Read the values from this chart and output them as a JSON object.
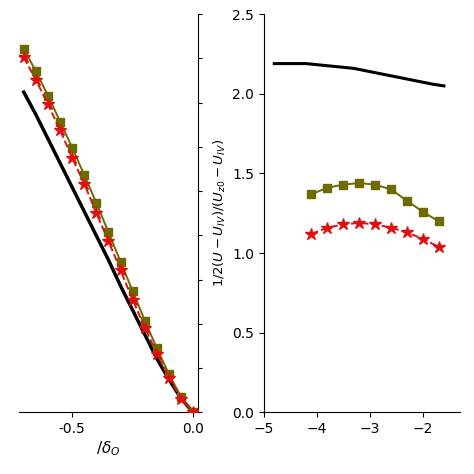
{
  "panel_a": {
    "black_x": [
      -0.7,
      -0.65,
      -0.6,
      -0.55,
      -0.5,
      -0.45,
      -0.4,
      -0.35,
      -0.3,
      -0.25,
      -0.2,
      -0.15,
      -0.1,
      -0.05,
      0.0
    ],
    "black_y": [
      1.85,
      1.72,
      1.58,
      1.44,
      1.3,
      1.16,
      1.02,
      0.88,
      0.73,
      0.59,
      0.45,
      0.31,
      0.19,
      0.08,
      0.0
    ],
    "olive_x": [
      -0.7,
      -0.65,
      -0.6,
      -0.55,
      -0.5,
      -0.45,
      -0.4,
      -0.35,
      -0.3,
      -0.25,
      -0.2,
      -0.15,
      -0.1,
      -0.05,
      0.0
    ],
    "olive_y": [
      2.1,
      1.97,
      1.83,
      1.68,
      1.53,
      1.37,
      1.21,
      1.04,
      0.87,
      0.7,
      0.53,
      0.37,
      0.22,
      0.09,
      0.0
    ],
    "red_x": [
      -0.7,
      -0.65,
      -0.6,
      -0.55,
      -0.5,
      -0.45,
      -0.4,
      -0.35,
      -0.3,
      -0.25,
      -0.2,
      -0.15,
      -0.1,
      -0.05,
      0.0
    ],
    "red_y": [
      2.05,
      1.92,
      1.78,
      1.63,
      1.47,
      1.32,
      1.15,
      0.99,
      0.82,
      0.65,
      0.49,
      0.34,
      0.2,
      0.08,
      0.0
    ],
    "xlim": [
      -0.72,
      0.02
    ],
    "ylim": [
      0.0,
      2.3
    ],
    "xticks": [
      -0.5,
      0.0
    ],
    "xlabel": "$/ \\delta_O$"
  },
  "panel_b": {
    "black_x": [
      -4.8,
      -4.5,
      -4.2,
      -3.9,
      -3.6,
      -3.3,
      -3.0,
      -2.7,
      -2.4,
      -2.1,
      -1.8,
      -1.6
    ],
    "black_y": [
      2.19,
      2.19,
      2.19,
      2.18,
      2.17,
      2.16,
      2.14,
      2.12,
      2.1,
      2.08,
      2.06,
      2.05
    ],
    "olive_x": [
      -4.1,
      -3.8,
      -3.5,
      -3.2,
      -2.9,
      -2.6,
      -2.3,
      -2.0,
      -1.7
    ],
    "olive_y": [
      1.37,
      1.41,
      1.43,
      1.44,
      1.43,
      1.4,
      1.33,
      1.26,
      1.2
    ],
    "red_x": [
      -4.1,
      -3.8,
      -3.5,
      -3.2,
      -2.9,
      -2.6,
      -2.3,
      -2.0,
      -1.7
    ],
    "red_y": [
      1.12,
      1.16,
      1.18,
      1.19,
      1.18,
      1.16,
      1.13,
      1.09,
      1.04
    ],
    "xlim": [
      -5.0,
      -1.3
    ],
    "ylim": [
      0.0,
      2.5
    ],
    "xticks": [
      -5,
      -4,
      -3,
      -2
    ],
    "yticks": [
      0.0,
      0.5,
      1.0,
      1.5,
      2.0,
      2.5
    ],
    "ylabel": "$1/2(U-U_{IV})/(U_{z0}-U_{IV})$"
  },
  "colors": {
    "black": "#000000",
    "olive": "#6B6B00",
    "red": "#DD1111"
  },
  "fig_width": 4.74,
  "fig_height": 4.74,
  "dpi": 100
}
